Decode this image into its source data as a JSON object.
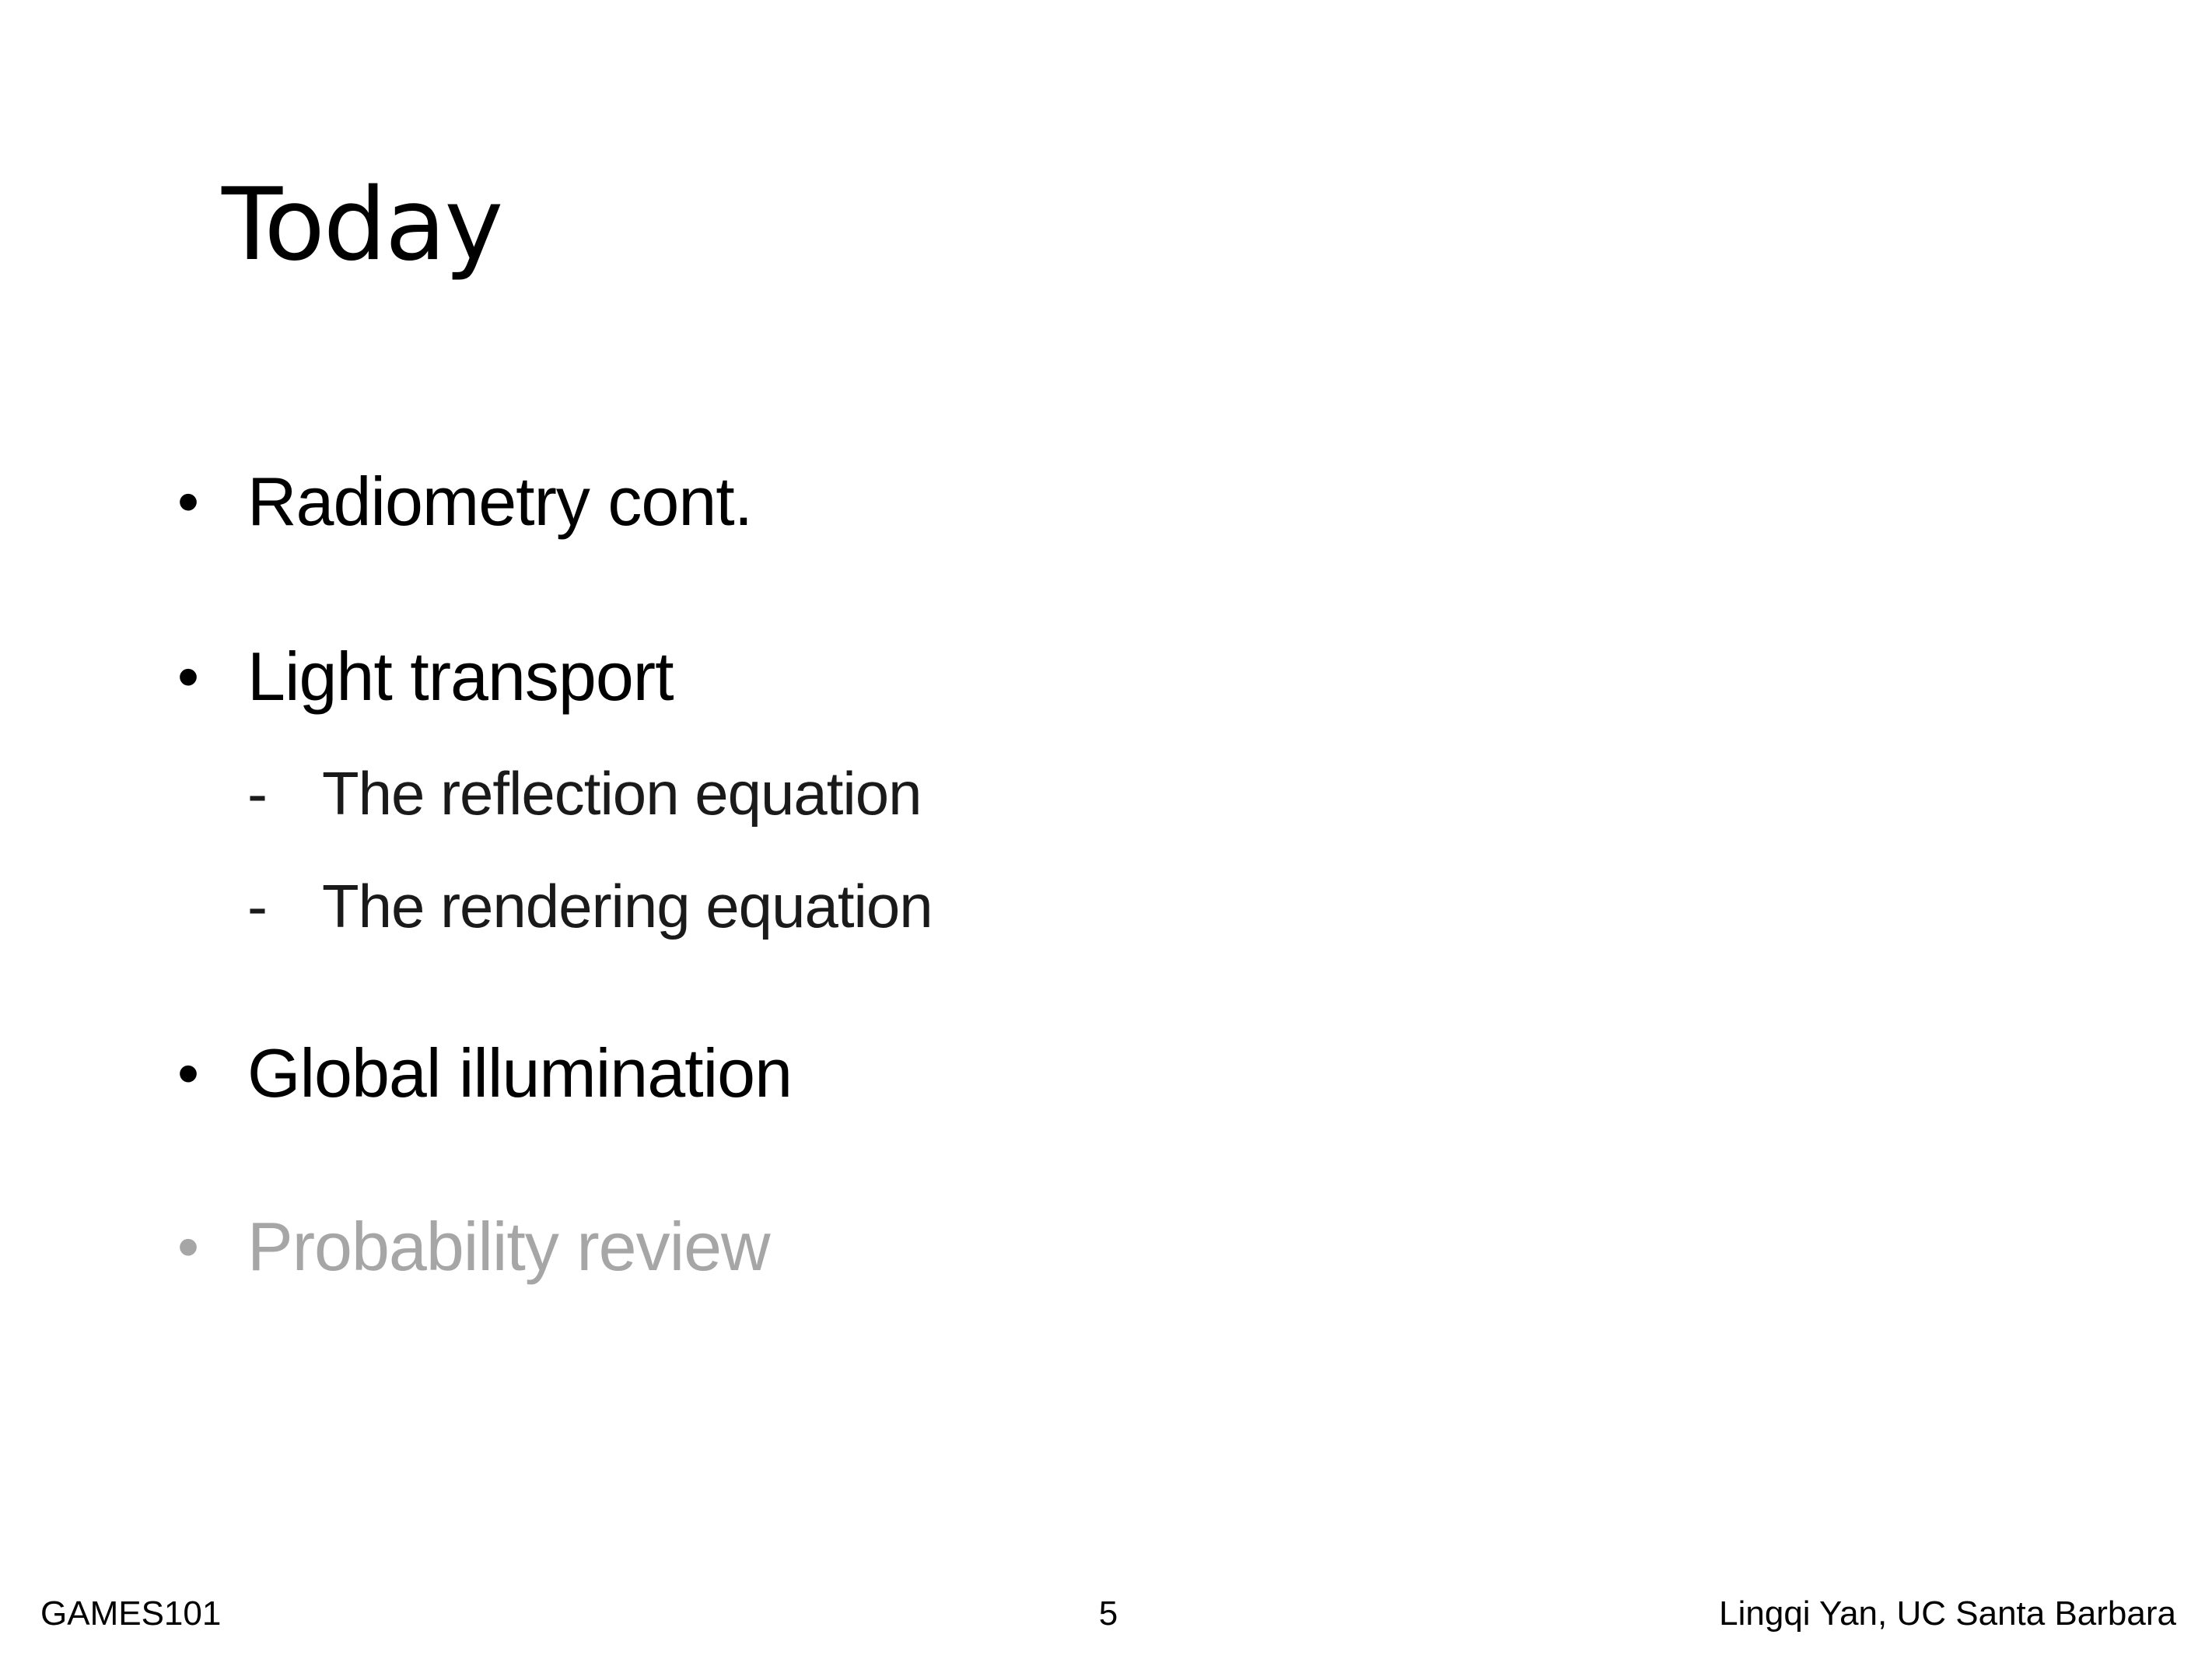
{
  "slide": {
    "title": "Today",
    "bullets": [
      {
        "marker": "•",
        "text": "Radiometry cont."
      },
      {
        "marker": "•",
        "text": "Light transport",
        "subitems": [
          {
            "marker": "-",
            "text": "The reflection equation"
          },
          {
            "marker": "-",
            "text": "The rendering equation"
          }
        ]
      },
      {
        "marker": "•",
        "text": "Global illumination"
      },
      {
        "marker": "•",
        "text": "Probability review",
        "state": "dimmed"
      }
    ]
  },
  "footer": {
    "course": "GAMES101",
    "page_number": "5",
    "author": "Lingqi Yan, UC Santa Barbara"
  },
  "colors": {
    "text": "#000000",
    "dimmed_text": "#a6a6a6",
    "background": "#ffffff"
  }
}
